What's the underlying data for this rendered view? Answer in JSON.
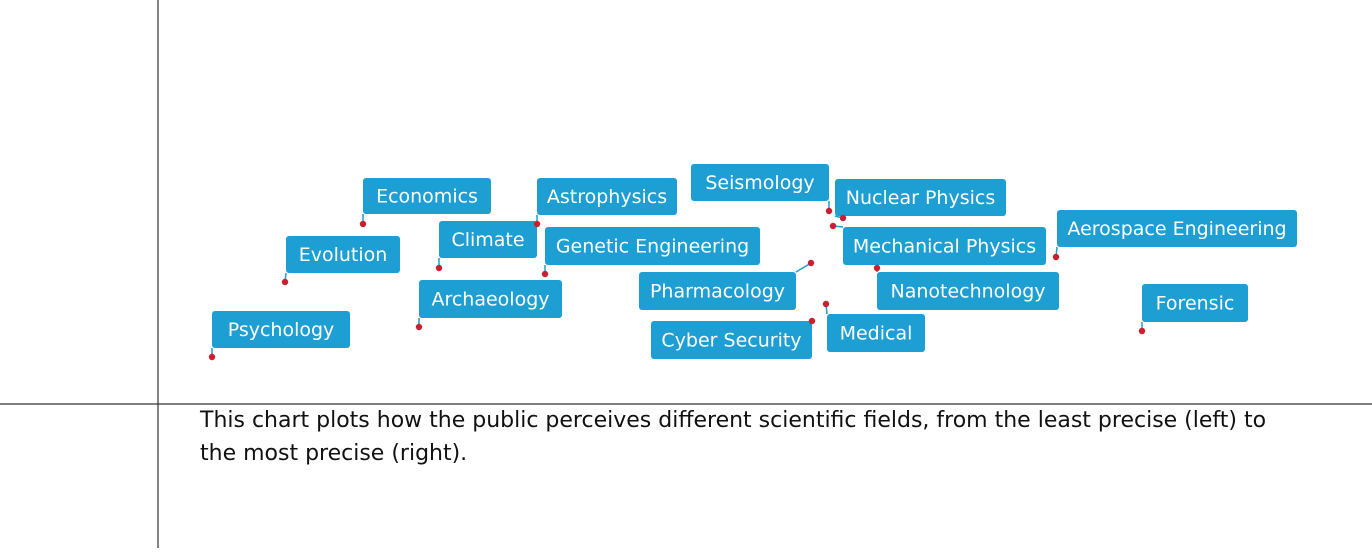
{
  "nodes": [
    {
      "label": "Economics"
    },
    {
      "label": "Evolution"
    },
    {
      "label": "Psychology"
    },
    {
      "label": "Climate"
    },
    {
      "label": "Astrophysics"
    },
    {
      "label": "Archaeology"
    },
    {
      "label": "Genetic Engineering"
    },
    {
      "label": "Seismology"
    },
    {
      "label": "Nuclear Physics"
    },
    {
      "label": "Mechanical Physics"
    },
    {
      "label": "Pharmacology"
    },
    {
      "label": "Nanotechnology"
    },
    {
      "label": "Cyber Security"
    },
    {
      "label": "Medical"
    },
    {
      "label": "Aerospace Engineering"
    },
    {
      "label": "Forensic"
    }
  ],
  "caption": {
    "lines": [
      "This chart plots how the public perceives different scientific fields, from the least precise (left) to",
      "the most precise (right)."
    ]
  }
}
